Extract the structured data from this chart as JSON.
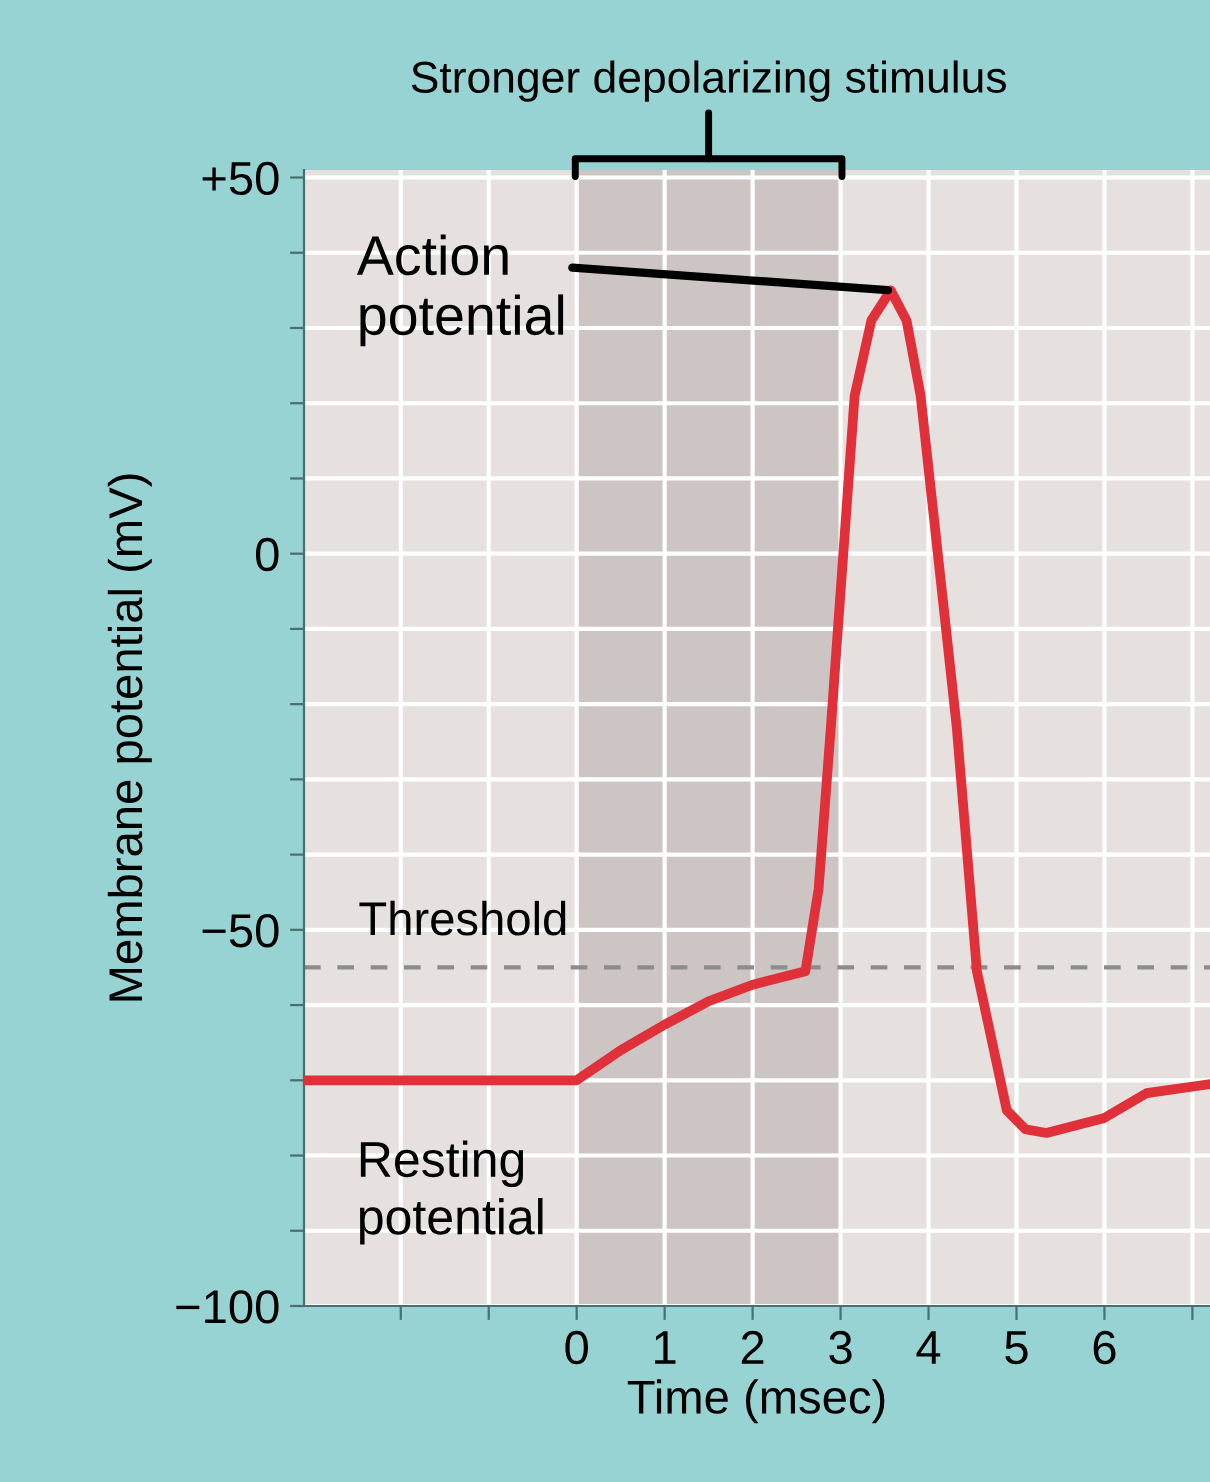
{
  "chart_data": {
    "type": "line",
    "xlabel": "Time (msec)",
    "ylabel": "Membrane potential (mV)",
    "x": [
      -3.1,
      0,
      0.5,
      1,
      1.5,
      2,
      2.6,
      2.75,
      2.89,
      3.16,
      3.35,
      3.57,
      3.75,
      3.91,
      4.32,
      4.55,
      4.89,
      5.1,
      5.34,
      6.0,
      6.48,
      7.2
    ],
    "series": [
      {
        "color": "#e0303a",
        "values": [
          -70,
          -70,
          -66,
          -62.6,
          -59.5,
          -57.3,
          -55.5,
          -44.6,
          -23,
          21,
          31,
          35,
          31,
          21,
          -23,
          -55.5,
          -74,
          -76.5,
          -77,
          -75,
          -71.7,
          -70.5
        ]
      }
    ],
    "xlim": [
      -3.1,
      7.2
    ],
    "ylim": [
      -100,
      51
    ],
    "xticks": [
      {
        "value": -2,
        "label": null
      },
      {
        "value": -1,
        "label": null
      },
      0,
      1,
      2,
      3,
      4,
      5,
      6,
      {
        "value": 7,
        "label": null
      }
    ],
    "yticks": [
      {
        "value": -100,
        "label": "−100"
      },
      {
        "value": -90,
        "label": null
      },
      {
        "value": -80,
        "label": null
      },
      {
        "value": -70,
        "label": null
      },
      {
        "value": -60,
        "label": null
      },
      {
        "value": -50,
        "label": "−50"
      },
      {
        "value": -40,
        "label": null
      },
      {
        "value": -30,
        "label": null
      },
      {
        "value": -20,
        "label": null
      },
      {
        "value": -10,
        "label": null
      },
      0,
      {
        "value": 10,
        "label": null
      },
      {
        "value": 20,
        "label": null
      },
      {
        "value": 30,
        "label": null
      },
      {
        "value": 40,
        "label": null
      },
      {
        "value": 50,
        "label": "+50"
      }
    ],
    "grid": true,
    "marker": "none",
    "line_style": "solid",
    "ref_lines": [
      {
        "axis": "y",
        "value": -55,
        "label": "Threshold",
        "color": "#8c8c8c",
        "line_style": "dashed"
      }
    ],
    "bands": [
      {
        "axis": "x",
        "from": 0,
        "to": 3,
        "label": "Stronger depolarizing stimulus",
        "color": "#cdc5c4"
      }
    ],
    "annotations": [
      {
        "text": "Action\npotential",
        "x": 3.57,
        "y": 35
      },
      {
        "text": "Resting\npotential",
        "x": -3.1,
        "y": -70
      }
    ]
  }
}
